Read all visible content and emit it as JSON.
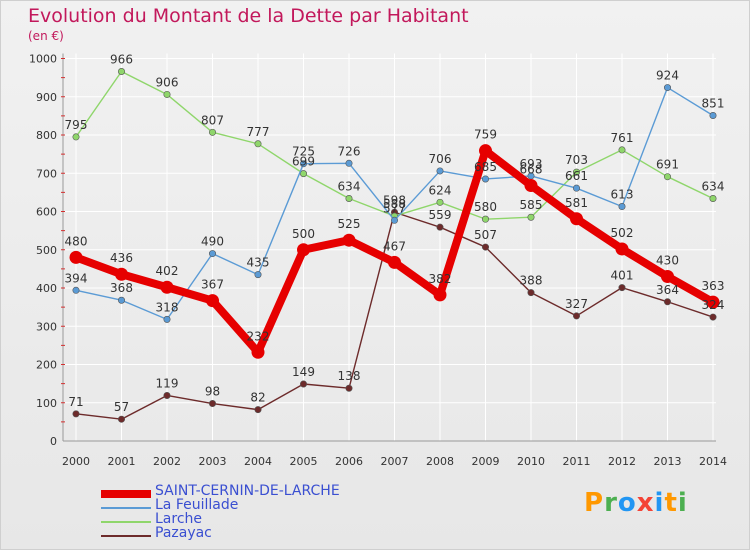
{
  "title": "Evolution du Montant de la Dette par Habitant",
  "unit": "(en €)",
  "brand": {
    "letters": [
      "P",
      "r",
      "o",
      "x",
      "i",
      "t",
      "i"
    ],
    "colors": [
      "#ff9800",
      "#4caf50",
      "#2196f3",
      "#f44336",
      "#2196f3",
      "#ff9800",
      "#4caf50"
    ]
  },
  "chart_data": {
    "type": "line",
    "x": [
      "2000",
      "2001",
      "2002",
      "2003",
      "2004",
      "2005",
      "2006",
      "2007",
      "2008",
      "2009",
      "2010",
      "2011",
      "2012",
      "2013",
      "2014"
    ],
    "ylim": [
      0,
      1000
    ],
    "yticks": [
      0,
      100,
      200,
      300,
      400,
      500,
      600,
      700,
      800,
      900,
      1000
    ],
    "grid": true,
    "legend_position": "bottom",
    "series": [
      {
        "name": "Pazayac",
        "color": "#6d2b2b",
        "width": 1.4,
        "labels": true,
        "values": [
          71,
          57,
          119,
          98,
          82,
          149,
          138,
          598,
          559,
          507,
          388,
          327,
          401,
          364,
          324
        ]
      },
      {
        "name": "Larche",
        "color": "#8fd66b",
        "width": 1.4,
        "labels": true,
        "values": [
          795,
          966,
          906,
          807,
          777,
          699,
          634,
          588,
          624,
          580,
          585,
          703,
          761,
          691,
          634
        ]
      },
      {
        "name": "La Feuillade",
        "color": "#5b9bd5",
        "width": 1.4,
        "labels": true,
        "values": [
          394,
          368,
          318,
          490,
          435,
          725,
          726,
          577,
          706,
          685,
          693,
          661,
          613,
          924,
          851
        ]
      },
      {
        "name": "SAINT-CERNIN-DE-LARCHE",
        "color": "#e60000",
        "width": 8,
        "labels": true,
        "values": [
          480,
          436,
          402,
          367,
          232,
          500,
          525,
          467,
          382,
          759,
          668,
          581,
          502,
          430,
          363
        ]
      }
    ],
    "label_text": {
      "Pazayac": [
        "71",
        "57",
        "119",
        "98",
        "82",
        "149",
        "138",
        "598",
        "559",
        "507",
        "388",
        "327",
        "401",
        "364",
        "324"
      ],
      "Larche": [
        "795",
        "966",
        "906",
        "807",
        "777",
        "699",
        "634",
        "588",
        "624",
        "580",
        "585",
        "703",
        "761",
        "691",
        "634"
      ],
      "La Feuillade": [
        "394",
        "368",
        "318",
        "490",
        "435",
        "725",
        "726",
        "577",
        "706",
        "685",
        "693",
        "661",
        "613",
        "924",
        "851"
      ],
      "SAINT-CERNIN-DE-LARCHE": [
        "480",
        "436",
        "402",
        "367",
        "232",
        "500",
        "525",
        "467",
        "382",
        "759",
        "668",
        "581",
        "502",
        "430",
        "363"
      ]
    },
    "legend_order": [
      "SAINT-CERNIN-DE-LARCHE",
      "La Feuillade",
      "Larche",
      "Pazayac"
    ]
  }
}
